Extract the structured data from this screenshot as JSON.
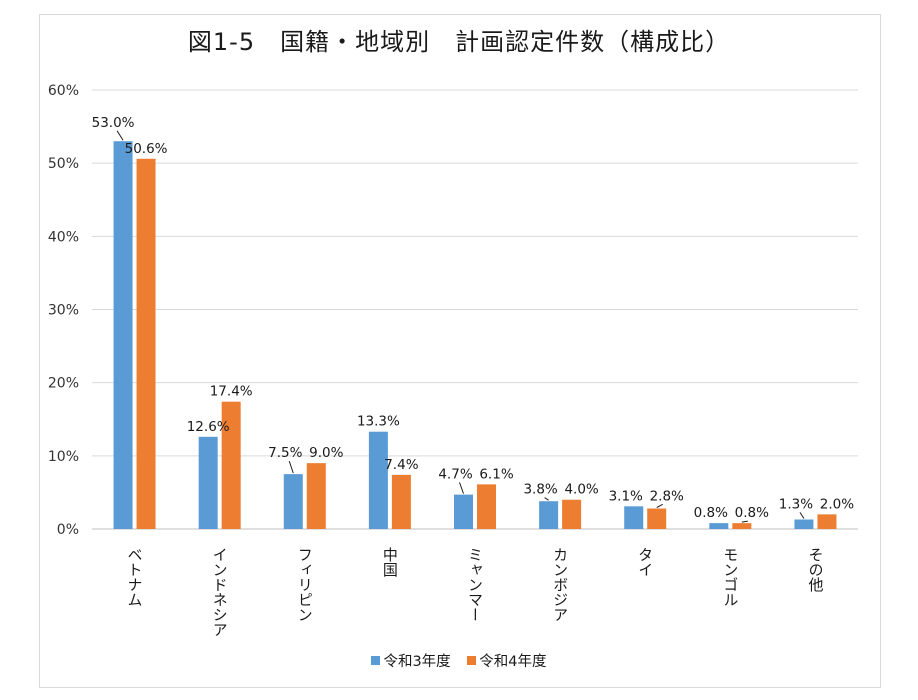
{
  "chart_data": {
    "type": "bar",
    "title": "図1-5　国籍・地域別　計画認定件数（構成比）",
    "xlabel": "",
    "ylabel": "",
    "ylim": [
      0,
      60
    ],
    "yticks": [
      "0%",
      "10%",
      "20%",
      "30%",
      "40%",
      "50%",
      "60%"
    ],
    "grid": true,
    "legend_position": "bottom",
    "categories": [
      "ベトナム",
      "インドネシア",
      "フィリピン",
      "中国",
      "ミャンマー",
      "カンボジア",
      "タイ",
      "モンゴル",
      "その他"
    ],
    "series": [
      {
        "name": "令和3年度",
        "color": "#5B9BD5",
        "values": [
          53.0,
          12.6,
          7.5,
          13.3,
          4.7,
          3.8,
          3.1,
          0.8,
          1.3
        ],
        "labels": [
          "53.0%",
          "12.6%",
          "7.5%",
          "13.3%",
          "4.7%",
          "3.8%",
          "3.1%",
          "0.8%",
          "1.3%"
        ]
      },
      {
        "name": "令和4年度",
        "color": "#ED7D31",
        "values": [
          50.6,
          17.4,
          9.0,
          7.4,
          6.1,
          4.0,
          2.8,
          0.8,
          2.0
        ],
        "labels": [
          "50.6%",
          "17.4%",
          "9.0%",
          "7.4%",
          "6.1%",
          "4.0%",
          "2.8%",
          "0.8%",
          "2.0%"
        ]
      }
    ]
  }
}
